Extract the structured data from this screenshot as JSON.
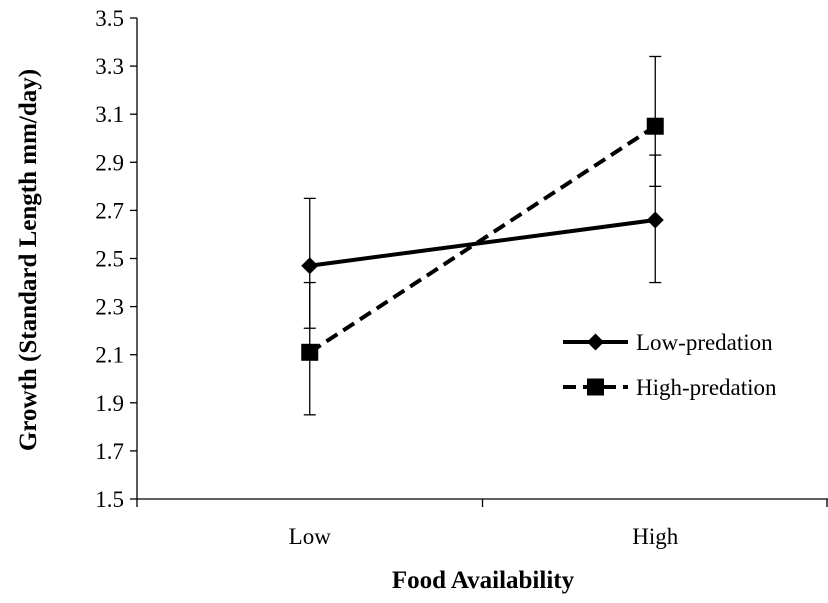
{
  "chart_data": {
    "type": "line",
    "title": "",
    "xlabel": "Food Availability",
    "ylabel": "Growth (Standard Length mm/day)",
    "categories": [
      "Low",
      "High"
    ],
    "ylim": [
      1.5,
      3.5
    ],
    "yticks": [
      1.5,
      1.7,
      1.9,
      2.1,
      2.3,
      2.5,
      2.7,
      2.9,
      3.1,
      3.3,
      3.5
    ],
    "ytick_labels": [
      "1.5",
      "1.7",
      "1.9",
      "2.1",
      "2.3",
      "2.5",
      "2.7",
      "2.9",
      "3.1",
      "3.3",
      "3.5"
    ],
    "grid": false,
    "legend_position": "right",
    "series": [
      {
        "name": "Low-predation",
        "values": [
          2.47,
          2.66
        ],
        "error_low": [
          2.21,
          2.4
        ],
        "error_high": [
          2.75,
          2.93
        ],
        "marker": "diamond",
        "line_style": "solid",
        "color": "#000000"
      },
      {
        "name": "High-predation",
        "values": [
          2.11,
          3.05
        ],
        "error_low": [
          1.85,
          2.8
        ],
        "error_high": [
          2.4,
          3.34
        ],
        "marker": "square",
        "line_style": "dashed",
        "color": "#000000"
      }
    ]
  }
}
